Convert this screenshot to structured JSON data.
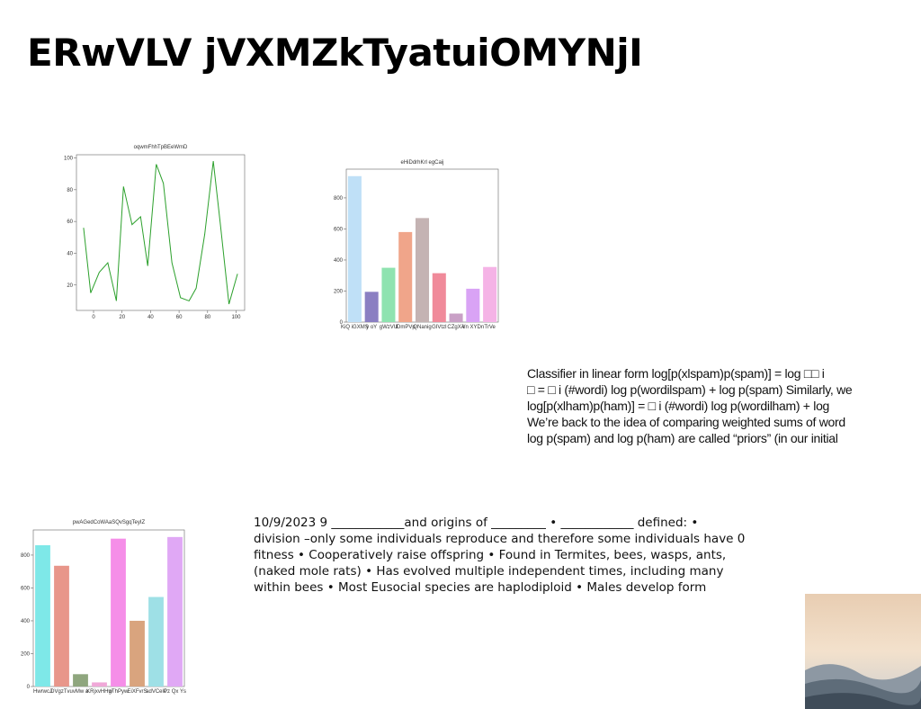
{
  "title": "ERwVLV jVXMZkTyatuiOMYNjI",
  "chart_data": [
    {
      "type": "line",
      "title": "oqwmFhhTpBEeWmD",
      "color": "#2ca02c",
      "x": [
        -7,
        -2,
        4,
        10,
        16,
        21,
        27,
        33,
        38,
        44,
        49,
        55,
        61,
        67,
        72,
        78,
        84,
        89,
        95,
        101
      ],
      "values": [
        56,
        15,
        28,
        34,
        10,
        82,
        58,
        63,
        32,
        96,
        84,
        34,
        12,
        10,
        18,
        52,
        98,
        58,
        8,
        27
      ],
      "xlim": [
        -12,
        106
      ],
      "xticks": [
        0,
        20,
        40,
        60,
        80,
        100
      ],
      "ylim": [
        4,
        102
      ],
      "yticks": [
        20,
        40,
        60,
        80,
        100
      ]
    },
    {
      "type": "bar",
      "title": "eHiDdrhKrl egCaij",
      "categories": [
        "KiQ iGXMS",
        "y oY",
        "gWzVU",
        "lDmPVp",
        "QNanig",
        "GIVtzl",
        "CZgXA",
        "Vn XYDn",
        "TrVe"
      ],
      "values": [
        940,
        195,
        350,
        580,
        670,
        315,
        55,
        215,
        355
      ],
      "colors": [
        "#bfe0f7",
        "#8b7fc2",
        "#8fe3b0",
        "#f0a58a",
        "#c4b3b3",
        "#f08a9a",
        "#c9a0c6",
        "#d9a3f5",
        "#f5b3e6"
      ],
      "ylim": [
        0,
        985
      ],
      "yticks": [
        0,
        200,
        400,
        600,
        800
      ]
    },
    {
      "type": "bar",
      "title": "pwAGedCoWAaSQvSgqTeyIZ",
      "categories": [
        "HwrwcJ",
        "DVgzTvu",
        "vMw a",
        "KRjxvHHw",
        "gThPyw",
        "EiXFvrS",
        "adVCelc",
        "Pz Qx Ys"
      ],
      "values": [
        860,
        735,
        75,
        25,
        900,
        400,
        545,
        910
      ],
      "colors": [
        "#7ee8e8",
        "#e8968a",
        "#8fa67e",
        "#f0a8d8",
        "#f58ee8",
        "#d9a47e",
        "#9ee0e6",
        "#e0a8f5"
      ],
      "ylim": [
        0,
        953
      ],
      "yticks": [
        0,
        200,
        400,
        600,
        800
      ]
    }
  ],
  "text_blocks": [
    {
      "lines": [
        "Classifier in linear form log[p(xlspam)p(spam)] = log □□ i",
        "□ = □ i (#wordi) log p(wordilspam) + log p(spam) Similarly, we",
        "log[p(xlham)p(ham)] = □ i (#wordi) log p(wordilham) + log",
        "We’re back to the idea of comparing weighted sums of word",
        "log p(spam) and log p(ham) are called “priors” (in our initial"
      ]
    },
    {
      "lines": [
        "10/9/2023 9 ____________and origins of _________ • ____________ defined: •",
        "division –only some individuals reproduce and therefore some individuals have 0",
        "fitness • Cooperatively raise offspring • Found in Termites, bees, wasps, ants,",
        "(naked mole rats) • Has evolved multiple independent times, including many",
        "within bees • Most Eusocial species are haplodiploid • Males develop form"
      ]
    }
  ]
}
